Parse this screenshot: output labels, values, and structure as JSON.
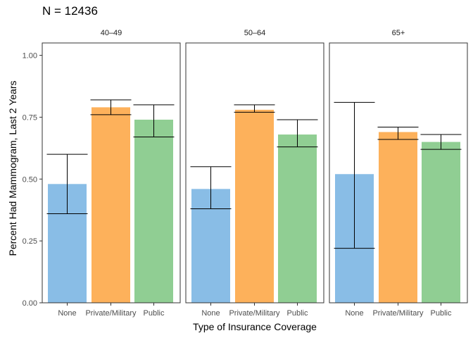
{
  "title": "N = 12436",
  "colors": {
    "None": "#89BDE6",
    "Private/Military": "#FDB15B",
    "Public": "#90CE93",
    "panel_border": "#333333",
    "axis_text": "#4D4D4D"
  },
  "chart_data": {
    "type": "bar",
    "title": "N = 12436",
    "xlabel": "Type of Insurance Coverage",
    "ylabel": "Percent Had Mammogram, Last 2 Years",
    "ylim": [
      0,
      1.05
    ],
    "yticks": [
      "0.00",
      "0.25",
      "0.50",
      "0.75",
      "1.00"
    ],
    "categories": [
      "None",
      "Private/Military",
      "Public"
    ],
    "grid": false,
    "legend": "none",
    "panels": [
      {
        "label": "40–49",
        "bars": [
          {
            "category": "None",
            "value": 0.48,
            "ci_low": 0.36,
            "ci_high": 0.6
          },
          {
            "category": "Private/Military",
            "value": 0.79,
            "ci_low": 0.76,
            "ci_high": 0.82
          },
          {
            "category": "Public",
            "value": 0.74,
            "ci_low": 0.67,
            "ci_high": 0.8
          }
        ]
      },
      {
        "label": "50–64",
        "bars": [
          {
            "category": "None",
            "value": 0.46,
            "ci_low": 0.38,
            "ci_high": 0.55
          },
          {
            "category": "Private/Military",
            "value": 0.78,
            "ci_low": 0.77,
            "ci_high": 0.8
          },
          {
            "category": "Public",
            "value": 0.68,
            "ci_low": 0.63,
            "ci_high": 0.74
          }
        ]
      },
      {
        "label": "65+",
        "bars": [
          {
            "category": "None",
            "value": 0.52,
            "ci_low": 0.22,
            "ci_high": 0.81
          },
          {
            "category": "Private/Military",
            "value": 0.69,
            "ci_low": 0.66,
            "ci_high": 0.71
          },
          {
            "category": "Public",
            "value": 0.65,
            "ci_low": 0.62,
            "ci_high": 0.68
          }
        ]
      }
    ]
  }
}
